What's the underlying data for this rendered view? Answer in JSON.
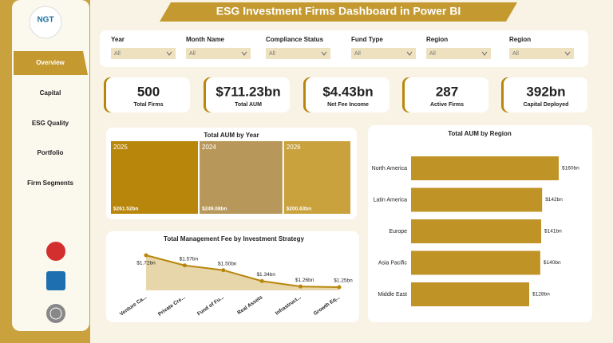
{
  "header": {
    "title": "ESG Investment Firms Dashboard in Power BI",
    "logo": "NGT"
  },
  "nav": [
    "Overview",
    "Capital",
    "ESG Quality",
    "Portfolio",
    "Firm Segments"
  ],
  "filters": [
    {
      "label": "Year",
      "value": "All"
    },
    {
      "label": "Month Name",
      "value": "All"
    },
    {
      "label": "Compliance Status",
      "value": "All"
    },
    {
      "label": "Fund Type",
      "value": "All"
    },
    {
      "label": "Region",
      "value": "All"
    },
    {
      "label": "Region",
      "value": "All"
    }
  ],
  "kpis": [
    {
      "value": "500",
      "label": "Total Firms"
    },
    {
      "value": "$711.23bn",
      "label": "Total AUM"
    },
    {
      "value": "$4.43bn",
      "label": "Net Fee Income"
    },
    {
      "value": "287",
      "label": "Active Firms"
    },
    {
      "value": "392bn",
      "label": "Capital Deployed"
    }
  ],
  "chart_data": [
    {
      "type": "treemap",
      "title": "Total AUM by Year",
      "categories": [
        "2025",
        "2024",
        "2026"
      ],
      "values": [
        261.52,
        249.08,
        200.63
      ],
      "value_labels": [
        "$261.52bn",
        "$249.08bn",
        "$200.63bn"
      ],
      "colors": [
        "#b8860b",
        "#b8985a",
        "#c9a23e"
      ]
    },
    {
      "type": "bar",
      "orientation": "horizontal",
      "title": "Total AUM by Region",
      "categories": [
        "North America",
        "Latin America",
        "Europe",
        "Asia Pacific",
        "Middle East"
      ],
      "values": [
        160,
        142,
        141,
        140,
        128
      ],
      "value_labels": [
        "$160bn",
        "$142bn",
        "$141bn",
        "$140bn",
        "$128bn"
      ],
      "color": "#c09327"
    },
    {
      "type": "area",
      "title": "Total Management Fee by Investment Strategy",
      "categories": [
        "Venture Ca...",
        "Private Cre...",
        "Fund of Fu...",
        "Real Assets",
        "Infrastruct...",
        "Growth Eq..."
      ],
      "values": [
        1.72,
        1.57,
        1.5,
        1.34,
        1.26,
        1.25
      ],
      "value_labels": [
        "$1.72bn",
        "$1.57bn",
        "$1.50bn",
        "$1.34bn",
        "$1.26bn",
        "$1.25bn"
      ],
      "color": "#b8860b",
      "fill": "#e8d6ab"
    }
  ]
}
